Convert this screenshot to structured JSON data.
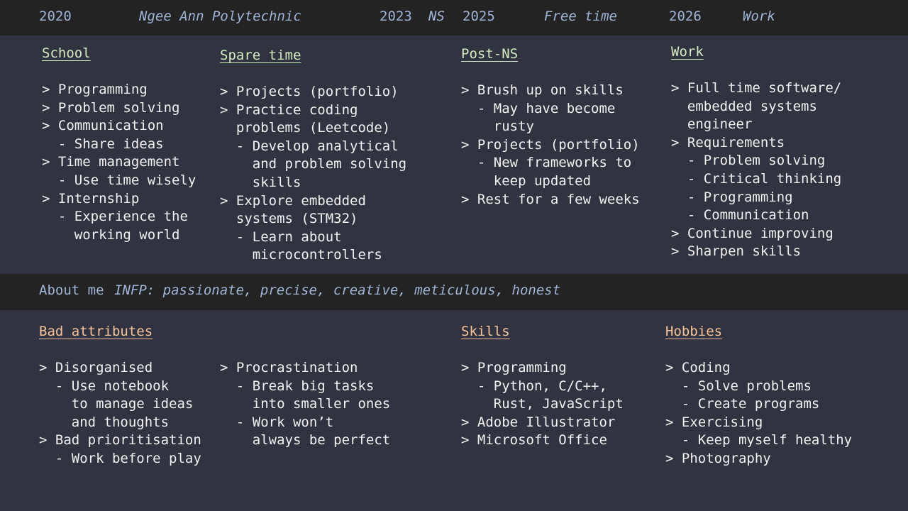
{
  "timeline": {
    "y2020": "2020",
    "school_name": "Ngee Ann Polytechnic",
    "y2023": "2023",
    "ns": "NS",
    "y2025": "2025",
    "free_time": "Free time",
    "y2026": "2026",
    "work": "Work"
  },
  "school": {
    "heading": "School",
    "lines": [
      "> Programming",
      "> Problem solving",
      "> Communication",
      "  - Share ideas",
      "> Time management",
      "  - Use time wisely",
      "> Internship",
      "  - Experience the",
      "    working world"
    ]
  },
  "spare_time": {
    "heading": "Spare time",
    "lines": [
      "> Projects (portfolio)",
      "> Practice coding",
      "  problems (Leetcode)",
      "  - Develop analytical",
      "    and problem solving",
      "    skills",
      "> Explore embedded",
      "  systems (STM32)",
      "  - Learn about",
      "    microcontrollers"
    ]
  },
  "post_ns": {
    "heading": "Post-NS",
    "lines": [
      "> Brush up on skills",
      "  - May have become",
      "    rusty",
      "> Projects (portfolio)",
      "  - New frameworks to",
      "    keep updated",
      "> Rest for a few weeks"
    ]
  },
  "work_col": {
    "heading": "Work",
    "lines": [
      "> Full time software/",
      "  embedded systems",
      "  engineer",
      "> Requirements",
      "  - Problem solving",
      "  - Critical thinking",
      "  - Programming",
      "  - Communication",
      "> Continue improving",
      "> Sharpen skills"
    ]
  },
  "about": {
    "label": "About me",
    "text": "INFP: passionate, precise, creative, meticulous, honest"
  },
  "bad_attributes": {
    "heading": "Bad attributes",
    "lines_left": [
      "> Disorganised",
      "  - Use notebook",
      "    to manage ideas",
      "    and thoughts",
      "> Bad prioritisation",
      "  - Work before play"
    ],
    "lines_right": [
      "> Procrastination",
      "  - Break big tasks",
      "    into smaller ones",
      "  - Work won’t",
      "    always be perfect"
    ]
  },
  "skills": {
    "heading": "Skills",
    "lines": [
      "> Programming",
      "  - Python, C/C++,",
      "    Rust, JavaScript",
      "> Adobe Illustrator",
      "> Microsoft Office"
    ]
  },
  "hobbies": {
    "heading": "Hobbies",
    "lines": [
      "> Coding",
      "  - Solve problems",
      "  - Create programs",
      "> Exercising",
      "  - Keep myself healthy",
      "> Photography"
    ]
  }
}
